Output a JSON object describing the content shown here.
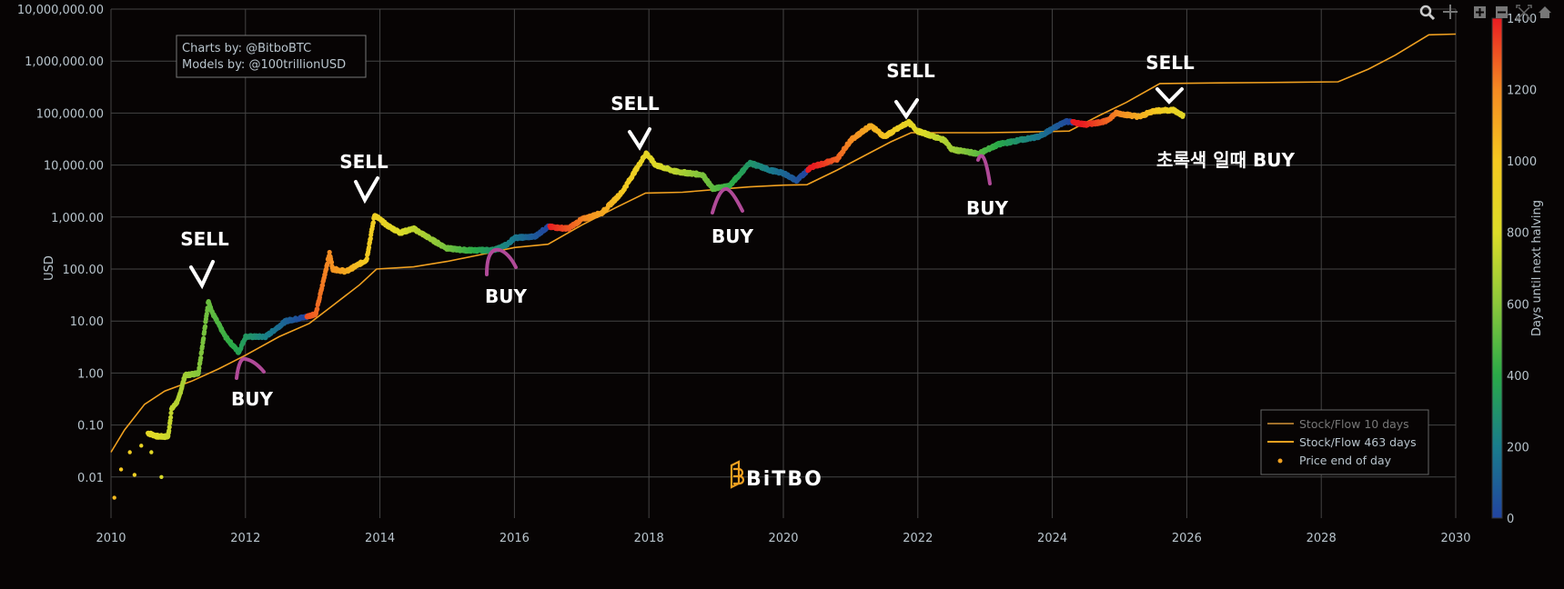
{
  "chart_data": {
    "type": "scatter",
    "title": "",
    "xlabel": "",
    "ylabel": "USD",
    "y_scale": "log",
    "ylim": [
      0.002,
      10000000
    ],
    "xlim": [
      2010,
      2030
    ],
    "grid": true,
    "x_ticks": [
      "2010",
      "2012",
      "2014",
      "2016",
      "2018",
      "2020",
      "2022",
      "2024",
      "2026",
      "2028",
      "2030"
    ],
    "y_ticks": [
      {
        "value": 10000000,
        "label": "10,000,000.00"
      },
      {
        "value": 1000000,
        "label": "1,000,000.00"
      },
      {
        "value": 100000,
        "label": "100,000.00"
      },
      {
        "value": 10000,
        "label": "10,000.00"
      },
      {
        "value": 1000,
        "label": "1,000.00"
      },
      {
        "value": 100,
        "label": "100.00"
      },
      {
        "value": 10,
        "label": "10.00"
      },
      {
        "value": 1,
        "label": "1.00"
      },
      {
        "value": 0.1,
        "label": "0.10"
      },
      {
        "value": 0.01,
        "label": "0.01"
      }
    ],
    "colorbar": {
      "title": "Days until next halving",
      "range": [
        0,
        1400
      ],
      "ticks": [
        "0",
        "200",
        "400",
        "600",
        "800",
        "1000",
        "1200",
        "1400"
      ],
      "colors": [
        "#2244a0",
        "#197c8c",
        "#2aaa48",
        "#8cc83a",
        "#dcdc28",
        "#f4c820",
        "#f48a22",
        "#e81c22"
      ]
    },
    "halvings": [
      2012.91,
      2016.52,
      2020.36,
      2024.3,
      2028.3
    ],
    "legend": {
      "placement": "bottom-right",
      "entries": [
        "Stock/Flow 10 days",
        "Stock/Flow 463 days",
        "Price end of day"
      ],
      "colors": [
        "#a0702a",
        "#f0a020",
        "#f0a020"
      ]
    },
    "series": [
      {
        "name": "Price end of day",
        "early_points": [
          [
            2010.05,
            0.004
          ],
          [
            2010.15,
            0.014
          ],
          [
            2010.28,
            0.03
          ],
          [
            2010.35,
            0.011
          ],
          [
            2010.45,
            0.04
          ],
          [
            2010.6,
            0.03
          ],
          [
            2010.75,
            0.01
          ]
        ],
        "points": [
          [
            2010.55,
            0.07
          ],
          [
            2010.7,
            0.06
          ],
          [
            2010.85,
            0.06
          ],
          [
            2010.9,
            0.2
          ],
          [
            2011.0,
            0.3
          ],
          [
            2011.1,
            0.9
          ],
          [
            2011.3,
            1.0
          ],
          [
            2011.4,
            8
          ],
          [
            2011.45,
            25
          ],
          [
            2011.5,
            15
          ],
          [
            2011.7,
            5
          ],
          [
            2011.9,
            2.5
          ],
          [
            2012.0,
            5
          ],
          [
            2012.3,
            5
          ],
          [
            2012.6,
            10
          ],
          [
            2012.9,
            12
          ],
          [
            2013.05,
            14
          ],
          [
            2013.25,
            200
          ],
          [
            2013.3,
            100
          ],
          [
            2013.5,
            90
          ],
          [
            2013.8,
            150
          ],
          [
            2013.92,
            1100
          ],
          [
            2014.1,
            700
          ],
          [
            2014.3,
            500
          ],
          [
            2014.5,
            600
          ],
          [
            2014.8,
            350
          ],
          [
            2015.0,
            250
          ],
          [
            2015.3,
            230
          ],
          [
            2015.7,
            230
          ],
          [
            2015.9,
            300
          ],
          [
            2016.0,
            400
          ],
          [
            2016.3,
            420
          ],
          [
            2016.5,
            650
          ],
          [
            2016.8,
            600
          ],
          [
            2017.0,
            900
          ],
          [
            2017.3,
            1200
          ],
          [
            2017.6,
            3000
          ],
          [
            2017.96,
            17000
          ],
          [
            2018.1,
            10000
          ],
          [
            2018.4,
            7500
          ],
          [
            2018.8,
            6500
          ],
          [
            2018.95,
            3500
          ],
          [
            2019.2,
            4000
          ],
          [
            2019.5,
            11000
          ],
          [
            2019.8,
            8000
          ],
          [
            2020.0,
            7000
          ],
          [
            2020.2,
            5000
          ],
          [
            2020.4,
            9000
          ],
          [
            2020.8,
            13000
          ],
          [
            2021.0,
            30000
          ],
          [
            2021.3,
            58000
          ],
          [
            2021.5,
            35000
          ],
          [
            2021.86,
            67000
          ],
          [
            2022.0,
            45000
          ],
          [
            2022.4,
            30000
          ],
          [
            2022.5,
            20000
          ],
          [
            2022.9,
            16500
          ],
          [
            2023.2,
            25000
          ],
          [
            2023.5,
            30000
          ],
          [
            2023.8,
            35000
          ],
          [
            2024.2,
            70000
          ],
          [
            2024.5,
            60000
          ],
          [
            2024.8,
            70000
          ],
          [
            2024.95,
            100000
          ],
          [
            2025.3,
            85000
          ],
          [
            2025.5,
            110000
          ],
          [
            2025.8,
            115000
          ],
          [
            2025.95,
            88000
          ]
        ]
      },
      {
        "name": "Stock/Flow 463 days",
        "points": [
          [
            2010.0,
            0.03
          ],
          [
            2010.2,
            0.08
          ],
          [
            2010.5,
            0.25
          ],
          [
            2010.8,
            0.45
          ],
          [
            2011.2,
            0.7
          ],
          [
            2011.6,
            1.2
          ],
          [
            2012.0,
            2.2
          ],
          [
            2012.5,
            5
          ],
          [
            2012.95,
            9
          ],
          [
            2013.3,
            20
          ],
          [
            2013.7,
            50
          ],
          [
            2013.95,
            100
          ],
          [
            2014.5,
            110
          ],
          [
            2015.0,
            140
          ],
          [
            2015.5,
            190
          ],
          [
            2016.0,
            260
          ],
          [
            2016.5,
            300
          ],
          [
            2017.0,
            700
          ],
          [
            2017.5,
            1500
          ],
          [
            2017.95,
            2900
          ],
          [
            2018.5,
            3000
          ],
          [
            2019.0,
            3400
          ],
          [
            2019.5,
            3800
          ],
          [
            2020.0,
            4100
          ],
          [
            2020.35,
            4200
          ],
          [
            2020.8,
            8000
          ],
          [
            2021.2,
            15000
          ],
          [
            2021.6,
            28000
          ],
          [
            2021.9,
            42000
          ],
          [
            2022.5,
            42000
          ],
          [
            2023.0,
            42000
          ],
          [
            2023.5,
            43000
          ],
          [
            2024.25,
            45000
          ],
          [
            2024.7,
            90000
          ],
          [
            2025.1,
            160000
          ],
          [
            2025.6,
            370000
          ],
          [
            2026.5,
            380000
          ],
          [
            2027.5,
            390000
          ],
          [
            2028.25,
            400000
          ],
          [
            2028.7,
            700000
          ],
          [
            2029.1,
            1300000
          ],
          [
            2029.6,
            3200000
          ],
          [
            2030.0,
            3300000
          ]
        ]
      }
    ],
    "annotations": {
      "sell_label": "SELL",
      "buy_label": "BUY",
      "green_buy_label": "초록색 일때 BUY"
    }
  },
  "credits": {
    "line1": "Charts by: @BitboBTC",
    "line2": "Models by: @100trillionUSD"
  },
  "logo_text": "BiTBO",
  "modebar": [
    "zoom-icon",
    "pan-icon",
    "zoom-in-icon",
    "zoom-out-icon",
    "autoscale-icon",
    "home-icon"
  ]
}
